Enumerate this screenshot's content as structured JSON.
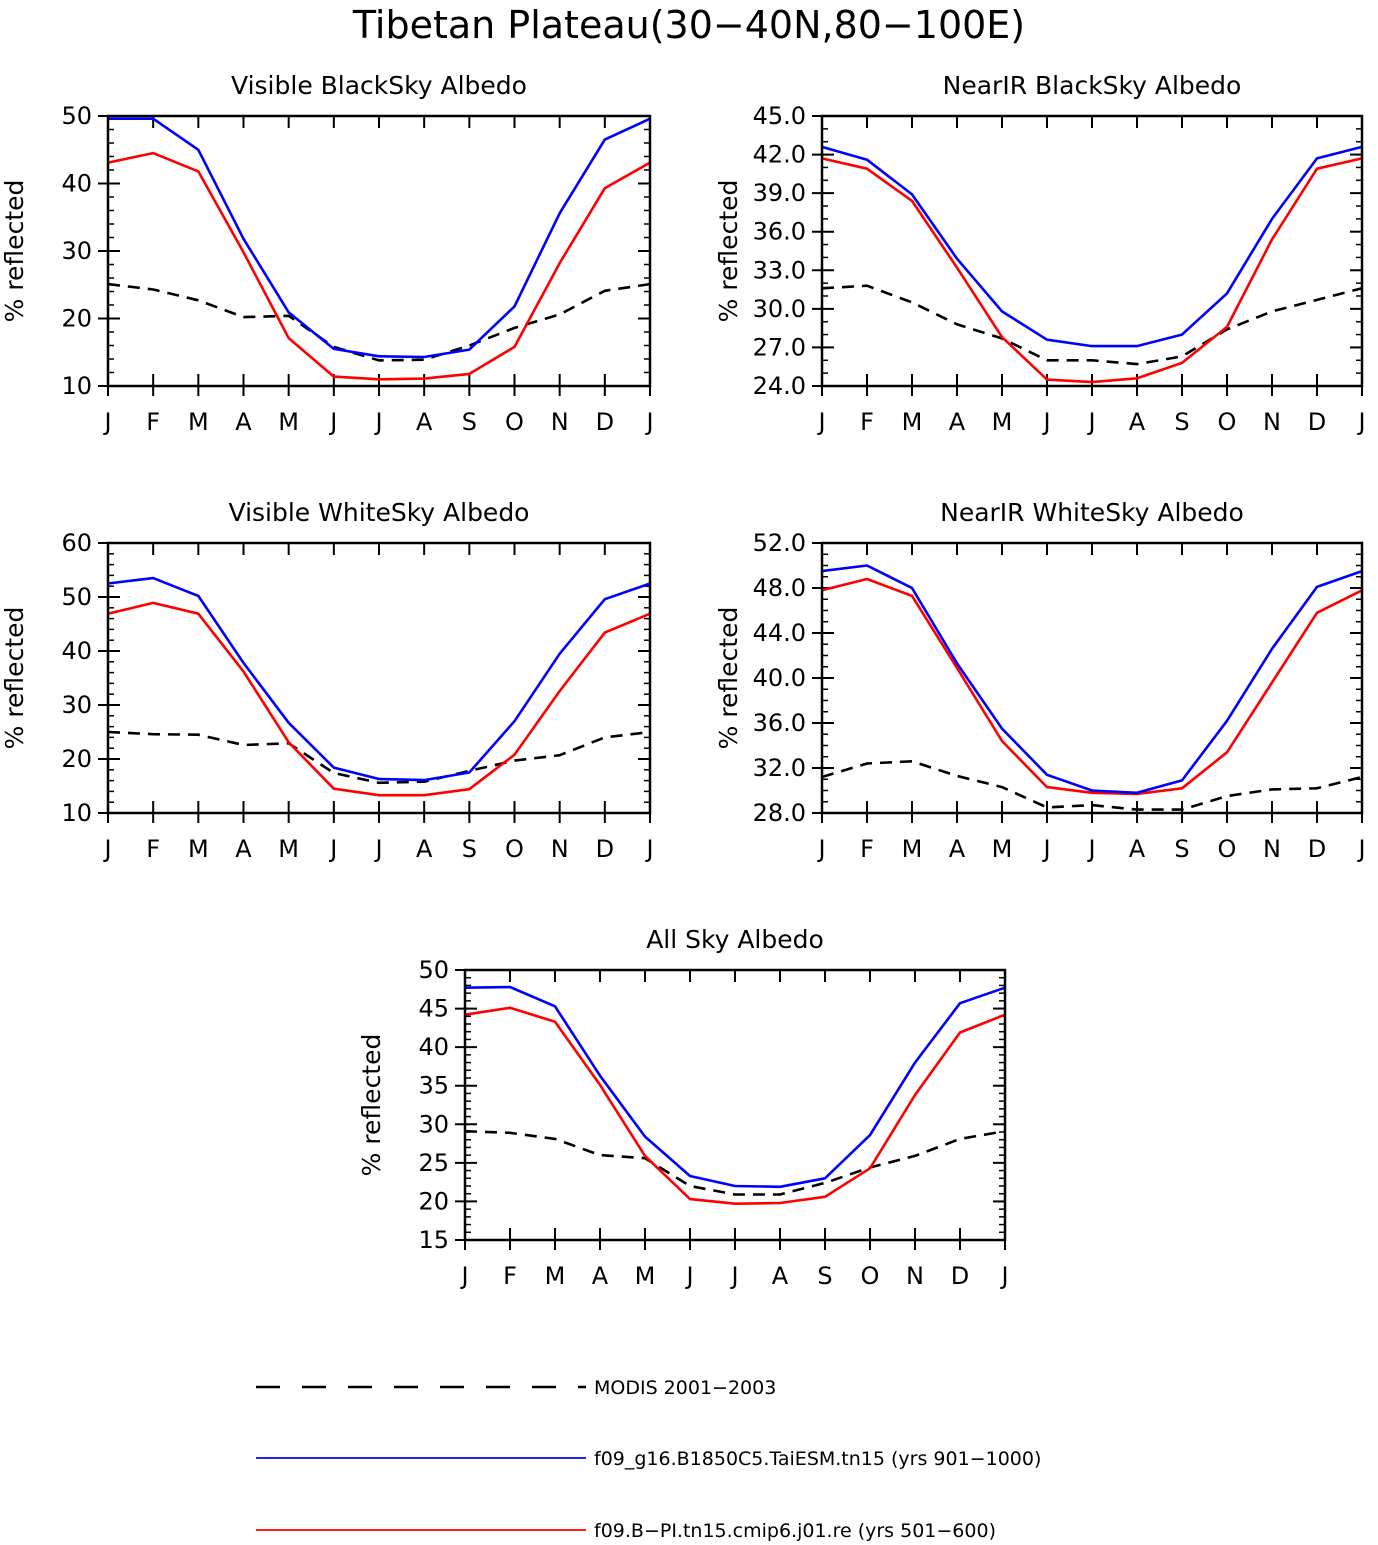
{
  "figure": {
    "title": "Tibetan Plateau(30−40N,80−100E)"
  },
  "legend": {
    "items": [
      {
        "name": "MODIS 2001−2003",
        "color": "#000000",
        "style": "dashed"
      },
      {
        "name": "f09_g16.B1850C5.TaiESM.tn15 (yrs 901−1000)",
        "color": "#0000ff",
        "style": "solid"
      },
      {
        "name": "f09.B−PI.tn15.cmip6.j01.re (yrs 501−600)",
        "color": "#ff0000",
        "style": "solid"
      }
    ]
  },
  "chart_data": [
    {
      "type": "line",
      "title": "Visible BlackSky Albedo",
      "ylabel": "% reflected",
      "xlabel": "",
      "categories": [
        "J",
        "F",
        "M",
        "A",
        "M",
        "J",
        "J",
        "A",
        "S",
        "O",
        "N",
        "D",
        "J"
      ],
      "ylim": [
        10,
        50
      ],
      "yticks": [
        "10",
        "20",
        "30",
        "40",
        "50"
      ],
      "minor_step": 2,
      "grid": false,
      "series": [
        {
          "name": "MODIS 2001−2003",
          "color": "#000000",
          "style": "dashed",
          "values": [
            25.1,
            24.3,
            22.7,
            20.2,
            20.4,
            15.8,
            13.8,
            13.9,
            16.0,
            18.6,
            20.6,
            24.1,
            25.1
          ]
        },
        {
          "name": "f09_g16.B1850C5.TaiESM.tn15 (yrs 901−1000)",
          "color": "#0000ff",
          "style": "solid",
          "values": [
            49.6,
            49.6,
            45.0,
            31.8,
            20.9,
            15.5,
            14.4,
            14.3,
            15.4,
            21.8,
            35.6,
            46.5,
            49.6
          ]
        },
        {
          "name": "f09.B−PI.tn15.cmip6.j01.re (yrs 501−600)",
          "color": "#ff0000",
          "style": "solid",
          "values": [
            43.1,
            44.5,
            41.8,
            29.8,
            17.1,
            11.4,
            11.0,
            11.1,
            11.8,
            15.8,
            28.2,
            39.3,
            43.1
          ]
        }
      ]
    },
    {
      "type": "line",
      "title": "NearIR BlackSky Albedo",
      "ylabel": "% reflected",
      "xlabel": "",
      "categories": [
        "J",
        "F",
        "M",
        "A",
        "M",
        "J",
        "J",
        "A",
        "S",
        "O",
        "N",
        "D",
        "J"
      ],
      "ylim": [
        24,
        45
      ],
      "yticks": [
        "24.0",
        "27.0",
        "30.0",
        "33.0",
        "36.0",
        "39.0",
        "42.0",
        "45.0"
      ],
      "minor_step": 1,
      "grid": false,
      "series": [
        {
          "name": "MODIS 2001−2003",
          "color": "#000000",
          "style": "dashed",
          "values": [
            31.6,
            31.8,
            30.5,
            28.8,
            27.7,
            26.0,
            26.0,
            25.7,
            26.3,
            28.4,
            29.8,
            30.7,
            31.6
          ]
        },
        {
          "name": "f09_g16.B1850C5.TaiESM.tn15 (yrs 901−1000)",
          "color": "#0000ff",
          "style": "solid",
          "values": [
            42.6,
            41.6,
            38.9,
            33.9,
            29.8,
            27.6,
            27.1,
            27.1,
            28.0,
            31.2,
            37.0,
            41.7,
            42.6
          ]
        },
        {
          "name": "f09.B−PI.tn15.cmip6.j01.re (yrs 501−600)",
          "color": "#ff0000",
          "style": "solid",
          "values": [
            41.7,
            40.9,
            38.4,
            33.2,
            27.8,
            24.5,
            24.3,
            24.6,
            25.8,
            28.6,
            35.4,
            40.9,
            41.7
          ]
        }
      ]
    },
    {
      "type": "line",
      "title": "Visible WhiteSky Albedo",
      "ylabel": "% reflected",
      "xlabel": "",
      "categories": [
        "J",
        "F",
        "M",
        "A",
        "M",
        "J",
        "J",
        "A",
        "S",
        "O",
        "N",
        "D",
        "J"
      ],
      "ylim": [
        10,
        60
      ],
      "yticks": [
        "10",
        "20",
        "30",
        "40",
        "50",
        "60"
      ],
      "minor_step": 2,
      "grid": false,
      "series": [
        {
          "name": "MODIS 2001−2003",
          "color": "#000000",
          "style": "dashed",
          "values": [
            25.0,
            24.6,
            24.5,
            22.6,
            22.9,
            17.4,
            15.6,
            15.8,
            17.8,
            19.7,
            20.7,
            24.0,
            25.0
          ]
        },
        {
          "name": "f09_g16.B1850C5.TaiESM.tn15 (yrs 901−1000)",
          "color": "#0000ff",
          "style": "solid",
          "values": [
            52.5,
            53.5,
            50.2,
            37.8,
            26.7,
            18.4,
            16.3,
            16.1,
            17.5,
            27.0,
            39.5,
            49.6,
            52.5
          ]
        },
        {
          "name": "f09.B−PI.tn15.cmip6.j01.re (yrs 501−600)",
          "color": "#ff0000",
          "style": "solid",
          "values": [
            46.9,
            48.9,
            46.9,
            36.2,
            23.1,
            14.5,
            13.3,
            13.3,
            14.4,
            20.8,
            32.6,
            43.4,
            46.9
          ]
        }
      ]
    },
    {
      "type": "line",
      "title": "NearIR WhiteSky Albedo",
      "ylabel": "% reflected",
      "xlabel": "",
      "categories": [
        "J",
        "F",
        "M",
        "A",
        "M",
        "J",
        "J",
        "A",
        "S",
        "O",
        "N",
        "D",
        "J"
      ],
      "ylim": [
        28,
        52
      ],
      "yticks": [
        "28.0",
        "32.0",
        "36.0",
        "40.0",
        "44.0",
        "48.0",
        "52.0"
      ],
      "minor_step": 1,
      "grid": false,
      "series": [
        {
          "name": "MODIS 2001−2003",
          "color": "#000000",
          "style": "dashed",
          "values": [
            31.2,
            32.4,
            32.6,
            31.3,
            30.3,
            28.5,
            28.7,
            28.3,
            28.3,
            29.5,
            30.1,
            30.2,
            31.2
          ]
        },
        {
          "name": "f09_g16.B1850C5.TaiESM.tn15 (yrs 901−1000)",
          "color": "#0000ff",
          "style": "solid",
          "values": [
            49.5,
            50.0,
            48.0,
            41.3,
            35.5,
            31.4,
            30.0,
            29.8,
            30.9,
            36.2,
            42.6,
            48.1,
            49.5
          ]
        },
        {
          "name": "f09.B−PI.tn15.cmip6.j01.re (yrs 501−600)",
          "color": "#ff0000",
          "style": "solid",
          "values": [
            47.8,
            48.8,
            47.3,
            40.9,
            34.4,
            30.3,
            29.8,
            29.7,
            30.2,
            33.4,
            39.6,
            45.8,
            47.8
          ]
        }
      ]
    },
    {
      "type": "line",
      "title": "All Sky Albedo",
      "ylabel": "% reflected",
      "xlabel": "",
      "categories": [
        "J",
        "F",
        "M",
        "A",
        "M",
        "J",
        "J",
        "A",
        "S",
        "O",
        "N",
        "D",
        "J"
      ],
      "ylim": [
        15,
        50
      ],
      "yticks": [
        "15",
        "20",
        "25",
        "30",
        "35",
        "40",
        "45",
        "50"
      ],
      "minor_step": 1,
      "grid": false,
      "series": [
        {
          "name": "MODIS 2001−2003",
          "color": "#000000",
          "style": "dashed",
          "values": [
            29.1,
            28.9,
            28.1,
            26.0,
            25.6,
            22.0,
            20.9,
            20.9,
            22.4,
            24.4,
            25.9,
            28.1,
            29.1
          ]
        },
        {
          "name": "f09_g16.B1850C5.TaiESM.tn15 (yrs 901−1000)",
          "color": "#0000ff",
          "style": "solid",
          "values": [
            47.7,
            47.8,
            45.3,
            36.3,
            28.4,
            23.3,
            22.0,
            21.9,
            23.0,
            28.6,
            38.0,
            45.7,
            47.7
          ]
        },
        {
          "name": "f09.B−PI.tn15.cmip6.j01.re (yrs 501−600)",
          "color": "#ff0000",
          "style": "solid",
          "values": [
            44.2,
            45.1,
            43.3,
            35.1,
            25.9,
            20.3,
            19.7,
            19.8,
            20.6,
            24.3,
            33.8,
            41.9,
            44.2
          ]
        }
      ]
    }
  ]
}
